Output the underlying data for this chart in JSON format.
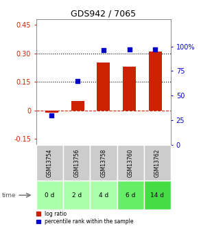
{
  "title": "GDS942 / 7065",
  "categories": [
    "GSM13754",
    "GSM13756",
    "GSM13758",
    "GSM13760",
    "GSM13762"
  ],
  "time_labels": [
    "0 d",
    "2 d",
    "4 d",
    "6 d",
    "14 d"
  ],
  "log_ratios": [
    -0.01,
    0.05,
    0.25,
    0.23,
    0.31
  ],
  "percentile_ranks": [
    30,
    65,
    96,
    97,
    97
  ],
  "bar_color": "#cc2200",
  "dot_color": "#0000cc",
  "ylim_left": [
    -0.18,
    0.48
  ],
  "ylim_right": [
    0,
    128
  ],
  "yticks_left": [
    -0.15,
    0.0,
    0.15,
    0.3,
    0.45
  ],
  "yticks_right": [
    0,
    25,
    50,
    75,
    100
  ],
  "ytick_labels_left": [
    "-0.15",
    "0",
    "0.15",
    "0.30",
    "0.45"
  ],
  "ytick_labels_right": [
    "0",
    "25",
    "50",
    "75",
    "100%"
  ],
  "hlines": [
    0.15,
    0.3
  ],
  "zero_line_y": 0.0,
  "background_color": "#ffffff",
  "plot_bg_color": "#ffffff",
  "gsm_bg_color": "#cccccc",
  "time_colors": [
    "#aaffaa",
    "#aaffaa",
    "#aaffaa",
    "#66ee66",
    "#44dd44"
  ],
  "legend_log_ratio": "log ratio",
  "legend_percentile": "percentile rank within the sample"
}
